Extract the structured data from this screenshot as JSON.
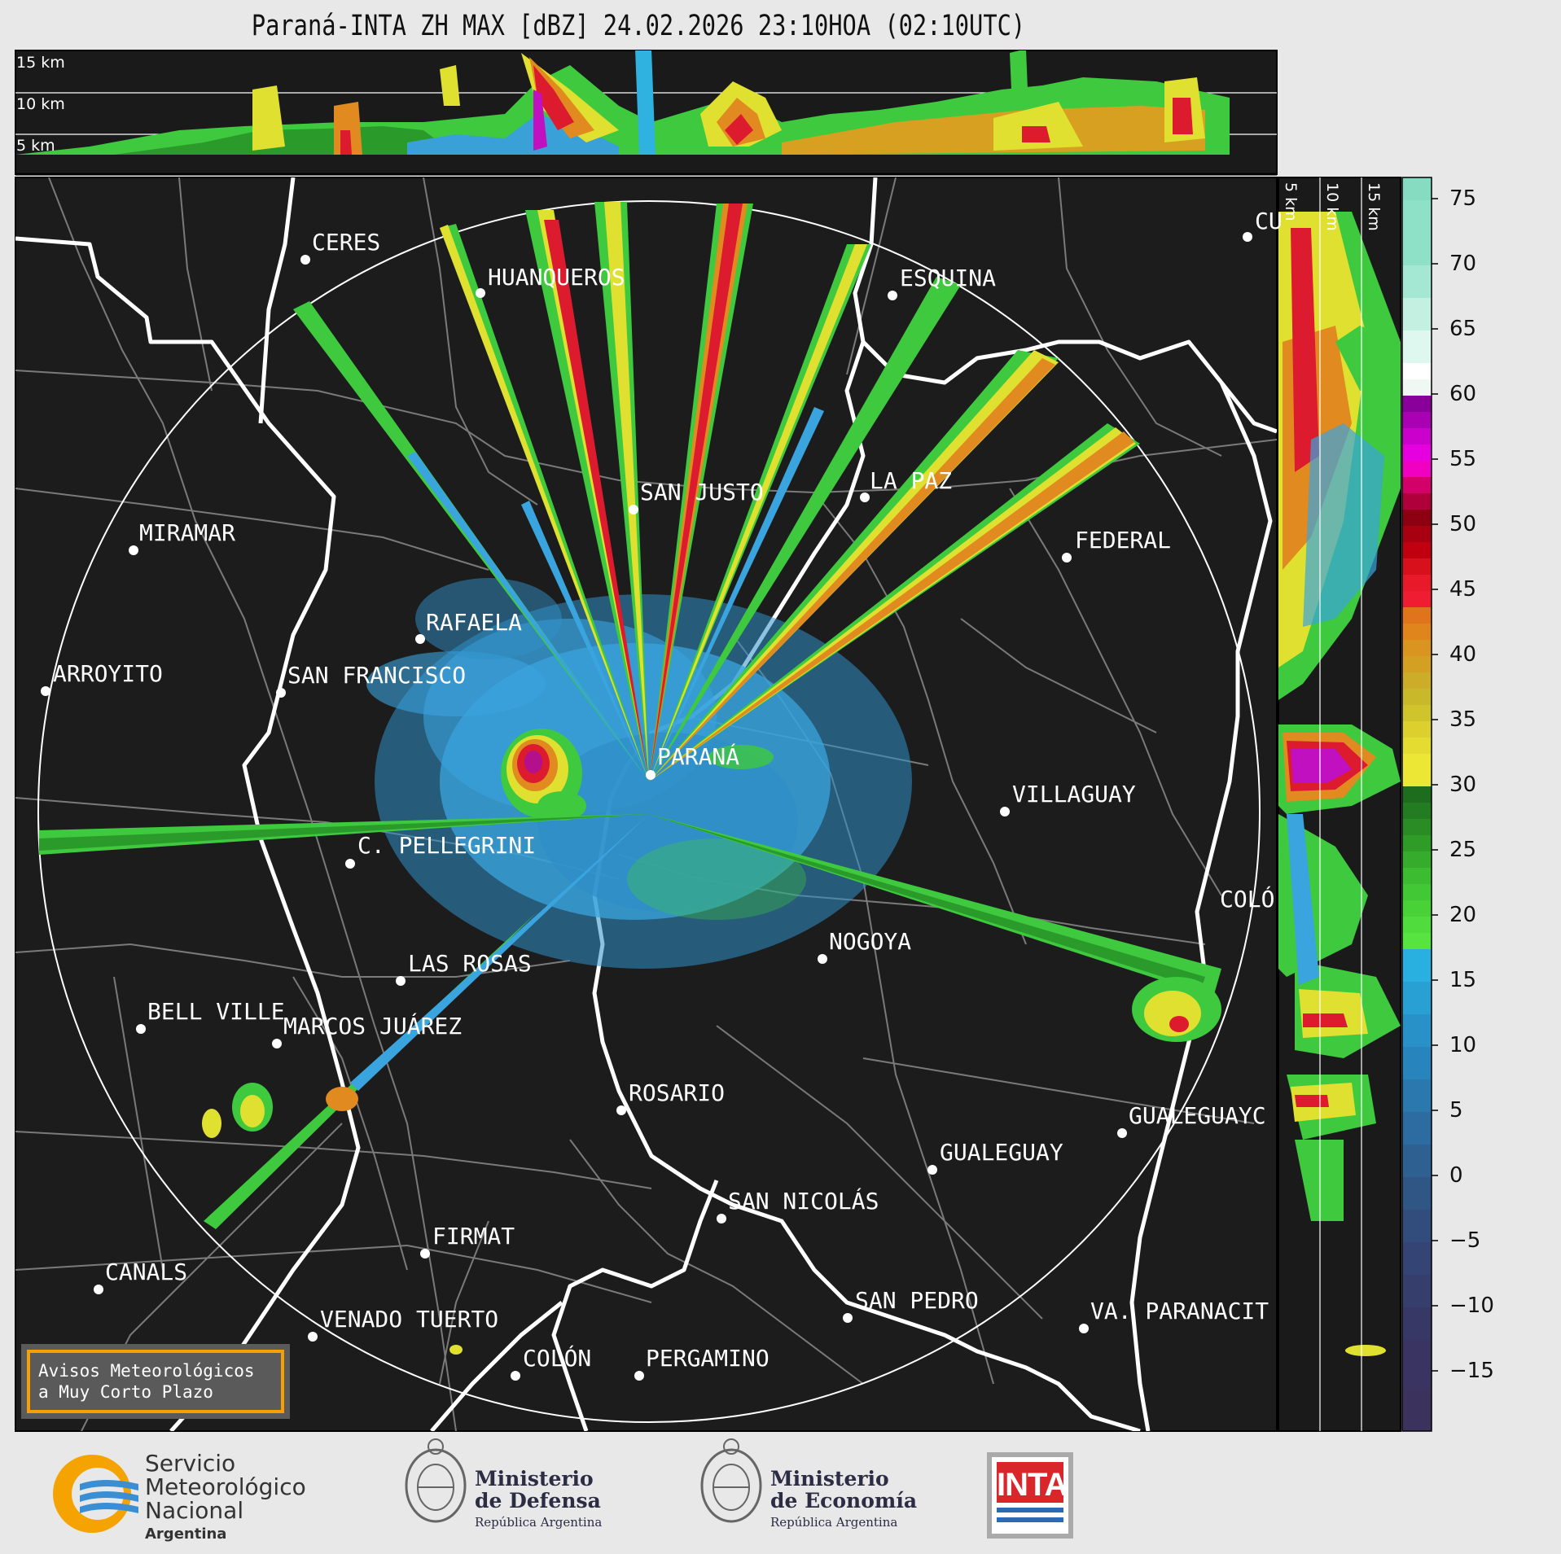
{
  "header": {
    "title": "Paraná-INTA ZH MAX [dBZ] 24.02.2026 23:10HOA (02:10UTC)"
  },
  "top_panel": {
    "height_labels": [
      "15 km",
      "10 km",
      "5 km"
    ]
  },
  "side_panel": {
    "height_labels": [
      "5 km",
      "10 km",
      "15 km"
    ]
  },
  "colorbar": {
    "unit": "dBZ",
    "ticks": [
      "75",
      "70",
      "65",
      "60",
      "55",
      "50",
      "45",
      "40",
      "35",
      "30",
      "25",
      "20",
      "15",
      "10",
      "5",
      "0",
      "−5",
      "−10",
      "−15"
    ]
  },
  "cities": [
    {
      "name": "CERES"
    },
    {
      "name": "HUANQUEROS"
    },
    {
      "name": "ESQUINA"
    },
    {
      "name": "CU"
    },
    {
      "name": "SAN JUSTO"
    },
    {
      "name": "LA PAZ"
    },
    {
      "name": "MIRAMAR"
    },
    {
      "name": "FEDERAL"
    },
    {
      "name": "RAFAELA"
    },
    {
      "name": "ARROYITO"
    },
    {
      "name": "SAN FRANCISCO"
    },
    {
      "name": "PARANÁ"
    },
    {
      "name": "VILLAGUAY"
    },
    {
      "name": "C. PELLEGRINI"
    },
    {
      "name": "COLÓ"
    },
    {
      "name": "NOGOYA"
    },
    {
      "name": "LAS ROSAS"
    },
    {
      "name": "BELL VILLE"
    },
    {
      "name": "MARCOS JUÁREZ"
    },
    {
      "name": "ROSARIO"
    },
    {
      "name": "GUALEGUAYC"
    },
    {
      "name": "GUALEGUAY"
    },
    {
      "name": "SAN NICOLÁS"
    },
    {
      "name": "FIRMAT"
    },
    {
      "name": "CANALS"
    },
    {
      "name": "SAN PEDRO"
    },
    {
      "name": "VENADO TUERTO"
    },
    {
      "name": "VA. PARANACIT"
    },
    {
      "name": "COLÓN"
    },
    {
      "name": "PERGAMINO"
    }
  ],
  "notice": {
    "line1": "Avisos Meteorológicos",
    "line2": "a Muy Corto Plazo"
  },
  "logos": {
    "smn": {
      "line1": "Servicio",
      "line2": "Meteorológico",
      "line3": "Nacional",
      "country": "Argentina"
    },
    "defensa": {
      "line1": "Ministerio",
      "line2": "de Defensa",
      "sub": "República Argentina"
    },
    "economia": {
      "line1": "Ministerio",
      "line2": "de Economía",
      "sub": "República Argentina"
    },
    "inta": {
      "text": "INTA"
    }
  }
}
